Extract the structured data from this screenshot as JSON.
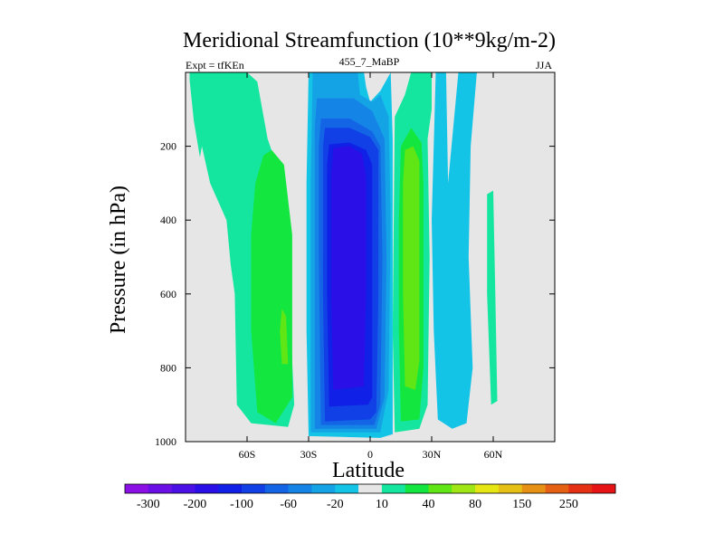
{
  "chart_data": {
    "type": "contour",
    "title": "Meridional Streamfunction (10**9kg/m-2)",
    "subtitle_left": "Expt = tfKEn",
    "subtitle_center": "455_7_MaBP",
    "subtitle_right": "JJA",
    "xlabel": "Latitude",
    "ylabel": "Pressure (in hPa)",
    "xlim": [
      -90,
      90
    ],
    "ylim": [
      1000,
      0
    ],
    "x_ticks": [
      {
        "value": -60,
        "label": "60S"
      },
      {
        "value": -30,
        "label": "30S"
      },
      {
        "value": 0,
        "label": "0"
      },
      {
        "value": 30,
        "label": "30N"
      },
      {
        "value": 60,
        "label": "60N"
      }
    ],
    "y_ticks": [
      {
        "value": 200,
        "label": "200"
      },
      {
        "value": 400,
        "label": "400"
      },
      {
        "value": 600,
        "label": "600"
      },
      {
        "value": 800,
        "label": "800"
      },
      {
        "value": 1000,
        "label": "1000"
      }
    ],
    "background_color": "#e6e6e6",
    "colorbar": {
      "levels": [
        -300,
        -250,
        -200,
        -150,
        -100,
        -80,
        -60,
        -40,
        -20,
        -10,
        10,
        20,
        40,
        60,
        80,
        100,
        150,
        200,
        250,
        300
      ],
      "colors": [
        "#8a10e6",
        "#6a10e6",
        "#4a10e6",
        "#2a10e6",
        "#1020e6",
        "#1040e6",
        "#1464e6",
        "#1484e6",
        "#14a4e6",
        "#14c4e6",
        "#e6e6e6",
        "#14e6a0",
        "#14e640",
        "#60e614",
        "#a0e614",
        "#e6e614",
        "#e6c014",
        "#e69014",
        "#e66014",
        "#e63014",
        "#e61414"
      ],
      "labels": [
        {
          "value": -300,
          "label": "-300"
        },
        {
          "value": -200,
          "label": "-200"
        },
        {
          "value": -100,
          "label": "-100"
        },
        {
          "value": -60,
          "label": "-60"
        },
        {
          "value": -20,
          "label": "-20"
        },
        {
          "value": 10,
          "label": "10"
        },
        {
          "value": 40,
          "label": "40"
        },
        {
          "value": 80,
          "label": "80"
        },
        {
          "value": 150,
          "label": "150"
        },
        {
          "value": 250,
          "label": "250"
        }
      ]
    },
    "contour_regions": [
      {
        "level": 10,
        "color": "#14e6a0",
        "points": [
          [
            -88,
            0
          ],
          [
            -60,
            0
          ],
          [
            -55,
            25
          ],
          [
            -50,
            180
          ],
          [
            -45,
            260
          ],
          [
            -40,
            540
          ],
          [
            -37,
            900
          ],
          [
            -40,
            960
          ],
          [
            -58,
            950
          ],
          [
            -65,
            900
          ],
          [
            -66,
            600
          ],
          [
            -68,
            520
          ],
          [
            -70,
            400
          ],
          [
            -78,
            300
          ],
          [
            -82,
            200
          ],
          [
            -83,
            230
          ],
          [
            -86,
            130
          ],
          [
            -88,
            20
          ]
        ]
      },
      {
        "level": 40,
        "color": "#14e640",
        "points": [
          [
            -52,
            225
          ],
          [
            -48,
            210
          ],
          [
            -42,
            250
          ],
          [
            -38,
            440
          ],
          [
            -38,
            880
          ],
          [
            -46,
            950
          ],
          [
            -55,
            920
          ],
          [
            -58,
            700
          ],
          [
            -58,
            440
          ],
          [
            -56,
            300
          ]
        ]
      },
      {
        "level": 60,
        "color": "#60e614",
        "points": [
          [
            -43,
            640
          ],
          [
            -41,
            660
          ],
          [
            -40,
            790
          ],
          [
            -43,
            790
          ],
          [
            -44,
            700
          ]
        ]
      },
      {
        "level": -10,
        "color": "#14c4e6",
        "points": [
          [
            -30,
            0
          ],
          [
            -3,
            0
          ],
          [
            -2,
            40
          ],
          [
            0,
            80
          ],
          [
            5,
            50
          ],
          [
            10,
            0
          ],
          [
            11,
            180
          ],
          [
            11,
            600
          ],
          [
            11,
            900
          ],
          [
            11,
            980
          ],
          [
            5,
            990
          ],
          [
            -30,
            985
          ],
          [
            -31,
            700
          ],
          [
            -31,
            300
          ]
        ]
      },
      {
        "level": -20,
        "color": "#14a4e6",
        "points": [
          [
            -28,
            0
          ],
          [
            -6,
            0
          ],
          [
            -5,
            60
          ],
          [
            1,
            80
          ],
          [
            5,
            60
          ],
          [
            9,
            120
          ],
          [
            10,
            400
          ],
          [
            9,
            860
          ],
          [
            5,
            975
          ],
          [
            -29,
            975
          ],
          [
            -29,
            600
          ],
          [
            -29,
            300
          ]
        ]
      },
      {
        "level": -40,
        "color": "#1484e6",
        "points": [
          [
            -26,
            70
          ],
          [
            -8,
            70
          ],
          [
            1,
            105
          ],
          [
            7,
            180
          ],
          [
            8,
            500
          ],
          [
            7,
            880
          ],
          [
            3,
            965
          ],
          [
            -27,
            965
          ],
          [
            -27,
            500
          ],
          [
            -27,
            150
          ]
        ]
      },
      {
        "level": -60,
        "color": "#1464e6",
        "points": [
          [
            -24,
            125
          ],
          [
            -10,
            125
          ],
          [
            1,
            160
          ],
          [
            5,
            200
          ],
          [
            6,
            500
          ],
          [
            5,
            900
          ],
          [
            2,
            955
          ],
          [
            -24,
            955
          ],
          [
            -25,
            500
          ],
          [
            -25,
            200
          ]
        ]
      },
      {
        "level": -80,
        "color": "#1040e6",
        "points": [
          [
            -22,
            150
          ],
          [
            -10,
            150
          ],
          [
            0,
            175
          ],
          [
            4,
            210
          ],
          [
            4,
            600
          ],
          [
            3,
            920
          ],
          [
            0,
            940
          ],
          [
            -22,
            945
          ],
          [
            -23,
            600
          ],
          [
            -23,
            200
          ]
        ]
      },
      {
        "level": -100,
        "color": "#1020e6",
        "points": [
          [
            -20,
            195
          ],
          [
            -10,
            190
          ],
          [
            -2,
            210
          ],
          [
            1,
            250
          ],
          [
            1,
            600
          ],
          [
            1,
            880
          ],
          [
            -1,
            900
          ],
          [
            -20,
            905
          ],
          [
            -21,
            600
          ],
          [
            -21,
            250
          ]
        ]
      },
      {
        "level": -150,
        "color": "#2a10e6",
        "points": [
          [
            -18,
            205
          ],
          [
            -10,
            200
          ],
          [
            -4,
            220
          ],
          [
            -2,
            280
          ],
          [
            -2,
            600
          ],
          [
            -3,
            850
          ],
          [
            -18,
            860
          ],
          [
            -19,
            600
          ],
          [
            -19,
            280
          ]
        ]
      },
      {
        "level": 10,
        "color": "#14e6a0",
        "points": [
          [
            12,
            120
          ],
          [
            17,
            60
          ],
          [
            20,
            0
          ],
          [
            30,
            0
          ],
          [
            30,
            100
          ],
          [
            28,
            180
          ],
          [
            29,
            500
          ],
          [
            28,
            900
          ],
          [
            24,
            965
          ],
          [
            12,
            975
          ],
          [
            11,
            700
          ]
        ]
      },
      {
        "level": 40,
        "color": "#14e640",
        "points": [
          [
            15,
            200
          ],
          [
            20,
            150
          ],
          [
            25,
            190
          ],
          [
            26,
            300
          ],
          [
            26,
            800
          ],
          [
            24,
            940
          ],
          [
            15,
            945
          ],
          [
            14,
            700
          ],
          [
            14,
            400
          ]
        ]
      },
      {
        "level": 60,
        "color": "#60e614",
        "points": [
          [
            17,
            210
          ],
          [
            21,
            200
          ],
          [
            24,
            240
          ],
          [
            24,
            780
          ],
          [
            22,
            860
          ],
          [
            17,
            850
          ],
          [
            16,
            600
          ],
          [
            16,
            300
          ]
        ]
      },
      {
        "level": -10,
        "color": "#14c4e6",
        "points": [
          [
            32,
            0
          ],
          [
            37,
            0
          ],
          [
            38,
            300
          ],
          [
            43,
            0
          ],
          [
            52,
            0
          ],
          [
            49,
            200
          ],
          [
            48,
            500
          ],
          [
            50,
            800
          ],
          [
            47,
            950
          ],
          [
            40,
            965
          ],
          [
            33,
            940
          ],
          [
            31,
            700
          ],
          [
            30,
            400
          ]
        ]
      },
      {
        "level": 10,
        "color": "#14e6a0",
        "points": [
          [
            57,
            330
          ],
          [
            60,
            320
          ],
          [
            61,
            600
          ],
          [
            62,
            890
          ],
          [
            59,
            900
          ],
          [
            57,
            600
          ]
        ]
      }
    ]
  }
}
